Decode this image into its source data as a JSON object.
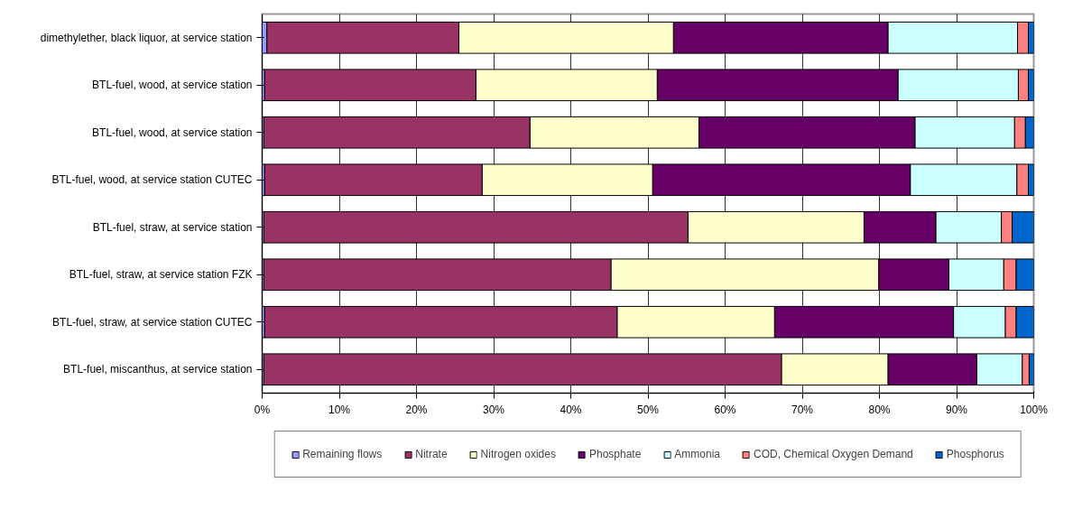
{
  "chart_data": {
    "type": "bar",
    "orientation": "horizontal",
    "stacked": true,
    "categories": [
      "dimethylether, black liquor, at service station",
      "BTL-fuel, wood, at service station",
      "BTL-fuel, wood, at service station",
      "BTL-fuel, wood, at service station CUTEC",
      "BTL-fuel, straw, at service station",
      "BTL-fuel, straw, at service station FZK",
      "BTL-fuel, straw, at service station CUTEC",
      "BTL-fuel, miscanthus, at service station"
    ],
    "series": [
      {
        "name": "Remaining flows",
        "color": "#9999ff",
        "values": [
          0.6,
          0.3,
          0.2,
          0.3,
          0.2,
          0.2,
          0.3,
          0.2
        ]
      },
      {
        "name": "Nitrate",
        "color": "#993366",
        "values": [
          24.9,
          27.4,
          34.5,
          28.2,
          55.0,
          45.0,
          45.7,
          67.1
        ]
      },
      {
        "name": "Nitrogen oxides",
        "color": "#ffffcc",
        "values": [
          27.8,
          23.5,
          21.9,
          22.1,
          22.8,
          34.7,
          20.4,
          13.8
        ]
      },
      {
        "name": "Phosphate",
        "color": "#660066",
        "values": [
          27.8,
          31.2,
          28.0,
          33.4,
          9.3,
          9.1,
          23.2,
          11.5
        ]
      },
      {
        "name": "Ammonia",
        "color": "#ccffff",
        "values": [
          16.8,
          15.6,
          12.9,
          13.8,
          8.5,
          7.1,
          6.7,
          5.9
        ]
      },
      {
        "name": "COD, Chemical Oxygen Demand",
        "color": "#ff8080",
        "values": [
          1.4,
          1.3,
          1.4,
          1.5,
          1.4,
          1.6,
          1.4,
          0.9
        ]
      },
      {
        "name": "Phosphorus",
        "color": "#0066cc",
        "values": [
          0.7,
          0.7,
          1.1,
          0.7,
          2.8,
          2.3,
          2.3,
          0.6
        ]
      }
    ],
    "xlim": [
      0,
      100
    ],
    "xticks": [
      {
        "value": 0,
        "label": "0%"
      },
      {
        "value": 10,
        "label": "10%"
      },
      {
        "value": 20,
        "label": "20%"
      },
      {
        "value": 30,
        "label": "30%"
      },
      {
        "value": 40,
        "label": "40%"
      },
      {
        "value": 50,
        "label": "50%"
      },
      {
        "value": 60,
        "label": "60%"
      },
      {
        "value": 70,
        "label": "70%"
      },
      {
        "value": 80,
        "label": "80%"
      },
      {
        "value": 90,
        "label": "90%"
      },
      {
        "value": 100,
        "label": "100%"
      }
    ],
    "grid": "x",
    "legend": "bottom"
  }
}
